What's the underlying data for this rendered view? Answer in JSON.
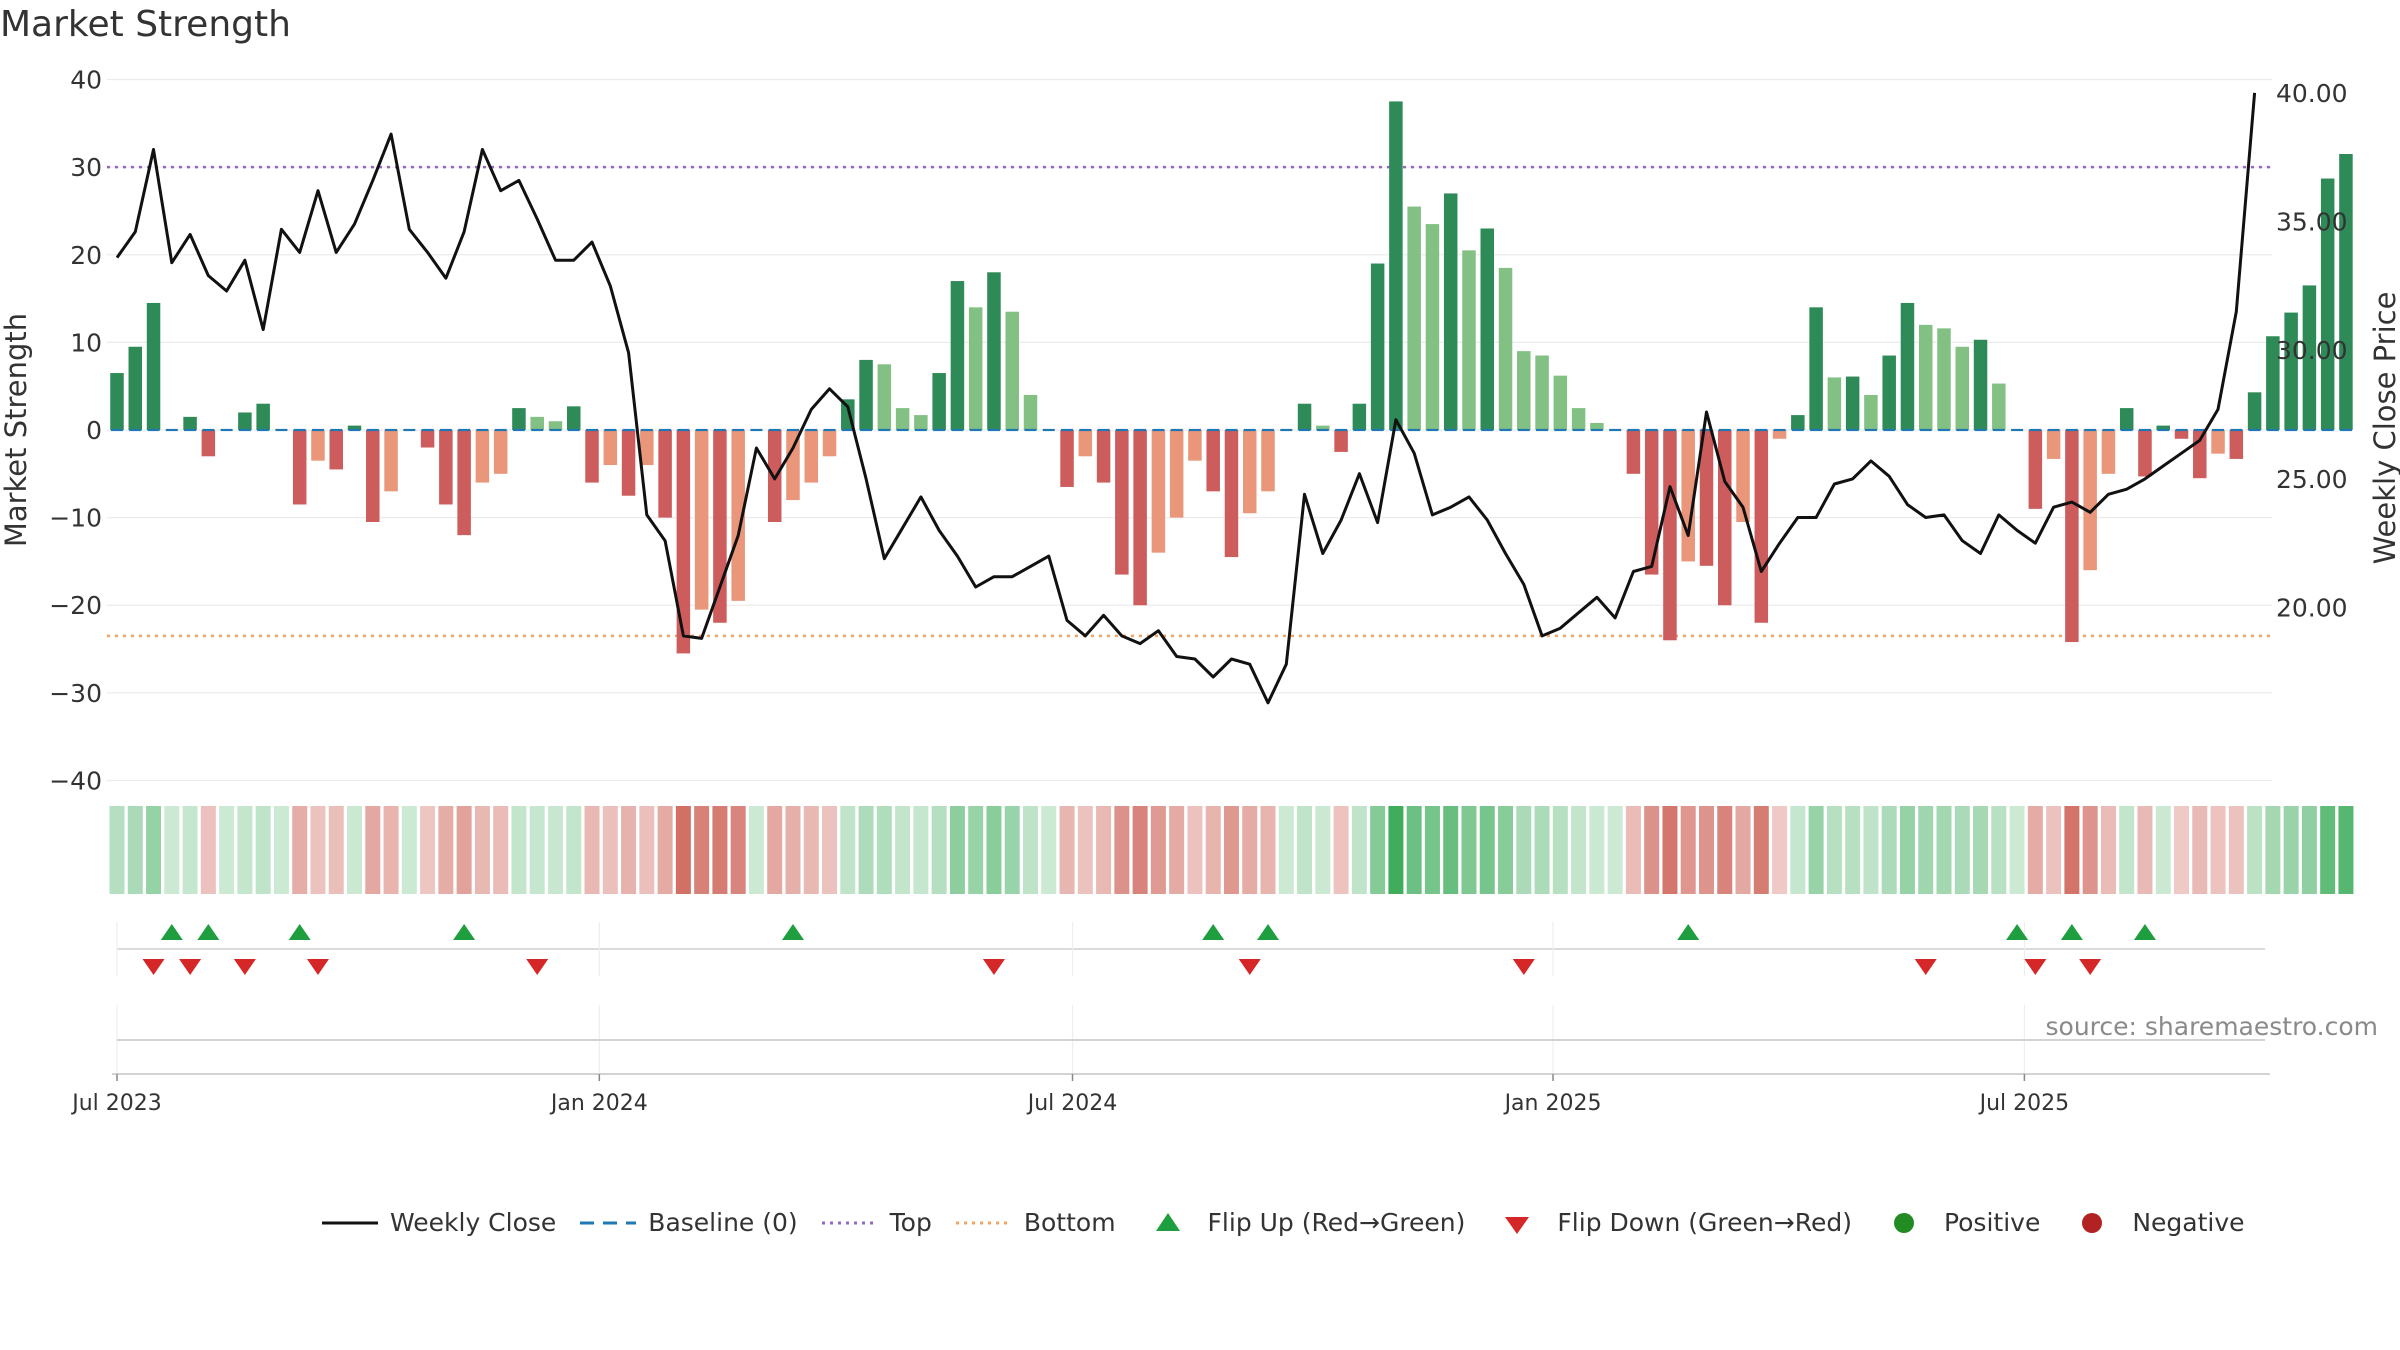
{
  "title": "Market Strength",
  "source": "source: sharemaestro.com",
  "colors": {
    "pos_strong": "#2e8b57",
    "pos_weak": "#82c084",
    "neg_strong": "#cd5c5c",
    "neg_weak": "#e9967a",
    "price_line": "#111111",
    "baseline": "#1f77b4",
    "top_line": "#9467bd",
    "bottom_line": "#f4a460",
    "flip_up": "#1e9e3e",
    "flip_down": "#d62728",
    "dot_pos": "#228b22",
    "dot_neg": "#b22222"
  },
  "legend": {
    "weekly_close": "Weekly Close",
    "baseline": "Baseline (0)",
    "top": "Top",
    "bottom": "Bottom",
    "flip_up": "Flip Up (Red→Green)",
    "flip_down": "Flip Down (Green→Red)",
    "positive": "Positive",
    "negative": "Negative"
  },
  "chart_data": {
    "type": "bar",
    "title": "Market Strength",
    "ylabel": "Market Strength",
    "y2label": "Weekly Close Price",
    "ylim": [
      -42,
      42
    ],
    "y2lim": [
      12.6,
      41.2
    ],
    "yticks": [
      40,
      30,
      20,
      10,
      0,
      -10,
      -20,
      -30,
      -40
    ],
    "ytick_labels": [
      "40",
      "30",
      "20",
      "10",
      "0",
      "−10",
      "−20",
      "−30",
      "−40"
    ],
    "y2ticks": [
      40,
      35,
      30,
      25,
      20
    ],
    "y2tick_labels": [
      "40.00",
      "35.00",
      "30.00",
      "25.00",
      "20.00"
    ],
    "xticks": [
      {
        "label": "Jul 2023",
        "week": 1
      },
      {
        "label": "Jan 2024",
        "week": 27.4
      },
      {
        "label": "Jul 2024",
        "week": 53.3
      },
      {
        "label": "Jan 2025",
        "week": 79.6
      },
      {
        "label": "Jul 2025",
        "week": 105.4
      }
    ],
    "top_threshold": 30,
    "bottom_threshold": -23.5,
    "baseline": 0,
    "strength": [
      6.5,
      9.5,
      14.5,
      0,
      1.5,
      -3,
      0,
      2,
      3,
      0,
      -8.5,
      -3.5,
      -4.5,
      0.5,
      -10.5,
      -7,
      0,
      -2,
      -8.5,
      -12,
      -6,
      -5,
      2.5,
      1.5,
      1,
      2.7,
      -6,
      -4,
      -7.5,
      -4,
      -10,
      -25.5,
      -20.5,
      -22,
      -19.5,
      0,
      -10.5,
      -8,
      -6,
      -3,
      3.5,
      8,
      7.5,
      2.5,
      1.7,
      6.5,
      17,
      14,
      18,
      13.5,
      4,
      0,
      -6.5,
      -3,
      -6,
      -16.5,
      -20,
      -14,
      -10,
      -3.5,
      -7,
      -14.5,
      -9.5,
      -7,
      0,
      3,
      0.5,
      -2.5,
      3,
      19,
      37.5,
      25.5,
      23.5,
      27,
      20.5,
      23,
      18.5,
      9,
      8.5,
      6.2,
      2.5,
      0.8,
      0,
      -5,
      -16.5,
      -24,
      -15,
      -15.5,
      -20,
      -10.5,
      -22,
      -1,
      1.7,
      14,
      6,
      6.1,
      4,
      8.5,
      14.5,
      12,
      11.6,
      9.5,
      10.3,
      5.3,
      0,
      -9,
      -3.3,
      -24.2,
      -16,
      -5,
      2.5,
      -5.3,
      0.5,
      -1,
      -5.5,
      -2.7,
      -3.3,
      4.3,
      10.7,
      13.4,
      16.5,
      28.7,
      31.5
    ],
    "weekly_close": [
      33.6,
      34.6,
      37.8,
      33.4,
      34.5,
      32.9,
      32.3,
      33.5,
      30.8,
      34.7,
      33.8,
      36.2,
      33.8,
      34.9,
      36.6,
      38.4,
      34.7,
      33.8,
      32.8,
      34.6,
      37.8,
      36.2,
      36.6,
      35.1,
      33.5,
      33.5,
      34.2,
      32.5,
      29.9,
      23.6,
      22.6,
      18.9,
      18.8,
      20.8,
      22.8,
      26.2,
      25.0,
      26.2,
      27.7,
      28.5,
      27.8,
      25.0,
      21.9,
      23.1,
      24.3,
      23.0,
      22.0,
      20.8,
      21.2,
      21.2,
      21.6,
      22.0,
      19.5,
      18.9,
      19.7,
      18.9,
      18.6,
      19.1,
      18.1,
      18.0,
      17.3,
      18.0,
      17.8,
      16.3,
      17.8,
      24.4,
      22.1,
      23.4,
      25.2,
      23.3,
      27.3,
      26.0,
      23.6,
      23.9,
      24.3,
      23.4,
      22.1,
      20.9,
      18.9,
      19.2,
      19.8,
      20.4,
      19.6,
      21.4,
      21.6,
      24.7,
      22.8,
      27.6,
      24.9,
      23.9,
      21.4,
      22.5,
      23.5,
      23.5,
      24.8,
      25.0,
      25.7,
      25.1,
      24.0,
      23.5,
      23.6,
      22.6,
      22.1,
      23.6,
      23.0,
      22.5,
      23.9,
      24.1,
      23.7,
      24.4,
      24.6,
      25.0,
      25.5,
      26.0,
      26.5,
      27.7,
      31.5,
      40.0
    ],
    "flip_up_weeks": [
      4,
      6,
      11,
      20,
      38,
      61,
      64,
      87,
      105,
      108,
      112
    ],
    "flip_down_weeks": [
      3,
      5,
      8,
      12,
      24,
      49,
      63,
      78,
      100,
      106,
      109
    ]
  }
}
